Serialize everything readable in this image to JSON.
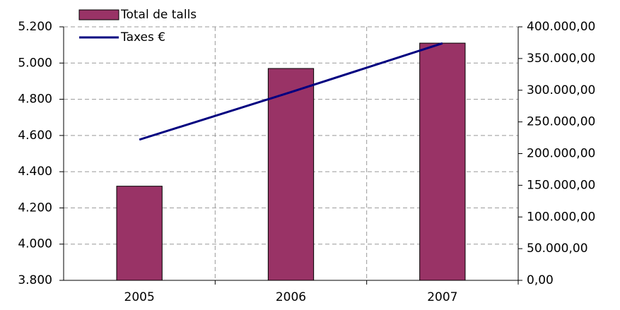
{
  "chart_data": {
    "type": "bar",
    "categories": [
      "2005",
      "2006",
      "2007"
    ],
    "series": [
      {
        "name": "Total de talls",
        "color": "#993366",
        "values": [
          4320,
          4970,
          5110
        ]
      },
      {
        "name": "Taxes €",
        "color": "#000080",
        "type": "line",
        "axis": "y2",
        "values": [
          222000,
          297000,
          374000
        ]
      }
    ],
    "ylim": [
      3800,
      5200
    ],
    "yticks": [
      {
        "value": 3800,
        "label": "3.800"
      },
      {
        "value": 4000,
        "label": "4.000"
      },
      {
        "value": 4200,
        "label": "4.200"
      },
      {
        "value": 4400,
        "label": "4.400"
      },
      {
        "value": 4600,
        "label": "4.600"
      },
      {
        "value": 4800,
        "label": "4.800"
      },
      {
        "value": 5000,
        "label": "5.000"
      },
      {
        "value": 5200,
        "label": "5.200"
      }
    ],
    "y2lim": [
      0,
      400000
    ],
    "y2ticks": [
      {
        "value": 0,
        "label": "0,00"
      },
      {
        "value": 50000,
        "label": "50.000,00"
      },
      {
        "value": 100000,
        "label": "100.000,00"
      },
      {
        "value": 150000,
        "label": "150.000,00"
      },
      {
        "value": 200000,
        "label": "200.000,00"
      },
      {
        "value": 250000,
        "label": "250.000,00"
      },
      {
        "value": 300000,
        "label": "300.000,00"
      },
      {
        "value": 350000,
        "label": "350.000,00"
      },
      {
        "value": 400000,
        "label": "400.000,00"
      }
    ],
    "grid": true,
    "legend": "top-left"
  }
}
